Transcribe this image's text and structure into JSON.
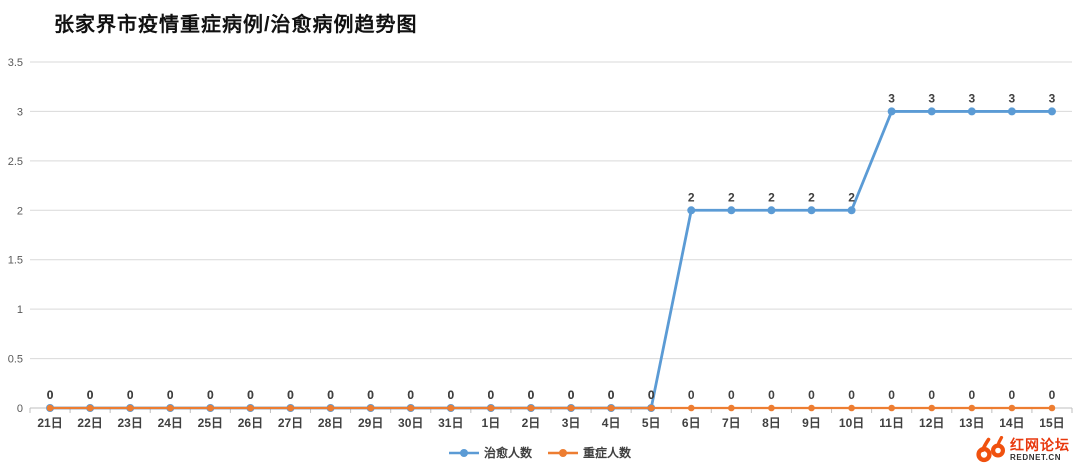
{
  "title": "张家界市疫情重症病例/治愈病例趋势图",
  "chart_data": {
    "type": "line",
    "title": "张家界市疫情重症病例/治愈病例趋势图",
    "categories": [
      "21日",
      "22日",
      "23日",
      "24日",
      "25日",
      "26日",
      "27日",
      "28日",
      "29日",
      "30日",
      "31日",
      "1日",
      "2日",
      "3日",
      "4日",
      "5日",
      "6日",
      "7日",
      "8日",
      "9日",
      "10日",
      "11日",
      "12日",
      "13日",
      "14日",
      "15日"
    ],
    "series": [
      {
        "name": "治愈人数",
        "color": "#5B9BD5",
        "values": [
          0,
          0,
          0,
          0,
          0,
          0,
          0,
          0,
          0,
          0,
          0,
          0,
          0,
          0,
          0,
          0,
          2,
          2,
          2,
          2,
          2,
          3,
          3,
          3,
          3,
          3
        ]
      },
      {
        "name": "重症人数",
        "color": "#ED7D31",
        "values": [
          0,
          0,
          0,
          0,
          0,
          0,
          0,
          0,
          0,
          0,
          0,
          0,
          0,
          0,
          0,
          0,
          0,
          0,
          0,
          0,
          0,
          0,
          0,
          0,
          0,
          0
        ]
      }
    ],
    "xlabel": "",
    "ylabel": "",
    "ylim": [
      0,
      3.5
    ],
    "ytick_step": 0.5,
    "grid": true,
    "data_labels": true,
    "legend_position": "bottom"
  },
  "axis": {
    "y_ticks": [
      "0",
      "0.5",
      "1",
      "1.5",
      "2",
      "2.5",
      "3",
      "3.5"
    ]
  },
  "legend": {
    "items": [
      {
        "label": "治愈人数",
        "color": "#5B9BD5"
      },
      {
        "label": "重症人数",
        "color": "#ED7D31"
      }
    ]
  },
  "branding": {
    "site_name": "红网论坛",
    "site_url": "REDNET.CN",
    "accent_color": "#E8380D",
    "logo_color": "#F0510F"
  },
  "colors": {
    "cured_line": "#5B9BD5",
    "severe_line": "#ED7D31",
    "grid": "#D9D9D9",
    "axis": "#BFBFBF",
    "tick_label": "#595959",
    "data_label": "#404040",
    "title": "#111111"
  }
}
